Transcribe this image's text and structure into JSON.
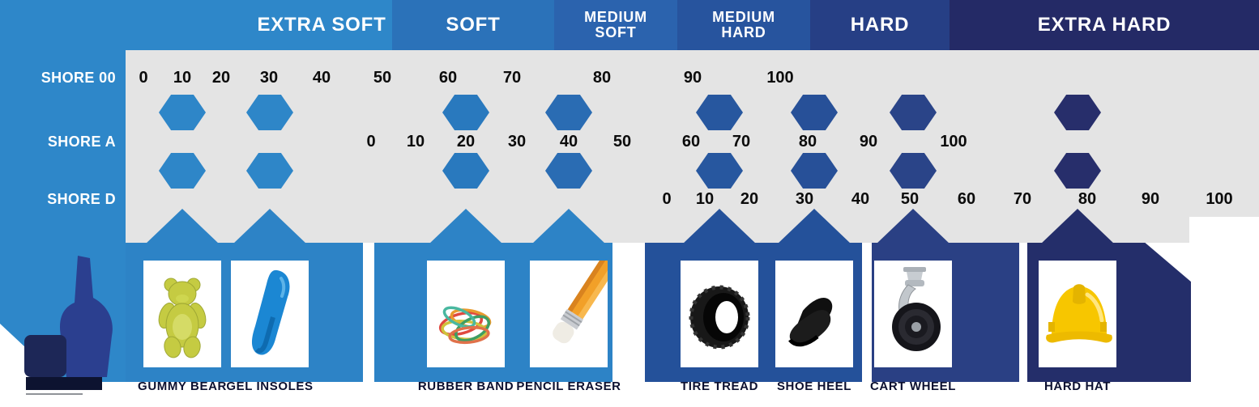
{
  "header": {
    "categories": [
      {
        "label": "EXTRA SOFT",
        "color": "#2E87C9"
      },
      {
        "label": "SOFT",
        "color": "#2B72B9"
      },
      {
        "label": "MEDIUM SOFT",
        "color": "#2B63AE"
      },
      {
        "label": "MEDIUM HARD",
        "color": "#27549E"
      },
      {
        "label": "HARD",
        "color": "#263F85"
      },
      {
        "label": "EXTRA HARD",
        "color": "#242A66"
      }
    ]
  },
  "scales": [
    {
      "label": "SHORE 00",
      "ticks": [
        "0",
        "10",
        "20",
        "30",
        "40",
        "50",
        "60",
        "70",
        "80",
        "90",
        "100"
      ]
    },
    {
      "label": "SHORE A",
      "ticks": [
        "0",
        "10",
        "20",
        "30",
        "40",
        "50",
        "60",
        "70",
        "80",
        "90",
        "100"
      ]
    },
    {
      "label": "SHORE D",
      "ticks": [
        "0",
        "10",
        "20",
        "30",
        "40",
        "50",
        "60",
        "70",
        "80",
        "90",
        "100"
      ]
    }
  ],
  "examples": [
    {
      "label": "GUMMY BEAR",
      "icon": "gummy-bear-icon",
      "marker_color": "#2E86C8",
      "approx": {
        "shore_00": 10
      }
    },
    {
      "label": "GEL INSOLES",
      "icon": "gel-insole-icon",
      "marker_color": "#2E86C8",
      "approx": {
        "shore_00": 30
      }
    },
    {
      "label": "RUBBER BAND",
      "icon": "rubber-bands-icon",
      "marker_color": "#2979BE",
      "approx": {
        "shore_a": 20
      }
    },
    {
      "label": "PENCIL ERASER",
      "icon": "pencil-eraser-icon",
      "marker_color": "#2A6CB3",
      "approx": {
        "shore_a": 40
      }
    },
    {
      "label": "TIRE TREAD",
      "icon": "tire-icon",
      "marker_color": "#27579F",
      "approx": {
        "shore_a": 65
      }
    },
    {
      "label": "SHOE HEEL",
      "icon": "shoe-heel-icon",
      "marker_color": "#275098",
      "approx": {
        "shore_a": 80
      }
    },
    {
      "label": "CART WHEEL",
      "icon": "cart-wheel-icon",
      "marker_color": "#2A4488",
      "approx": {
        "shore_d": 50
      }
    },
    {
      "label": "HARD HAT",
      "icon": "hard-hat-icon",
      "marker_color": "#272E6B",
      "approx": {
        "shore_d": 80
      }
    }
  ],
  "tabs": [
    {
      "color": "#2D83C6"
    },
    {
      "color": "#2D83C6"
    },
    {
      "color": "#24519A"
    },
    {
      "color": "#2A4084"
    },
    {
      "color": "#242E6A"
    }
  ],
  "colors": {
    "scale_band": "#E4E4E4",
    "panel": "#2E87C9",
    "tick_text": "#0B0B0B",
    "label_text": "#0C1030",
    "background": "#FFFFFF",
    "logo_hand": "#2B3F8F",
    "logo_fist": "#1D2757"
  }
}
